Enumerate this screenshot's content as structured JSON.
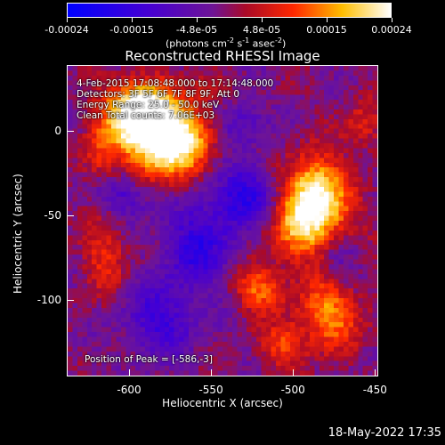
{
  "colorbar": {
    "tick_labels": [
      "-0.00024",
      "-0.00015",
      "-4.8e-05",
      "4.8e-05",
      "0.00015",
      "0.00024"
    ],
    "units_label": "(photons cm",
    "units_sup1": "-2",
    "units_mid": " s",
    "units_sup2": "-1",
    "units_mid2": " asec",
    "units_sup3": "-2",
    "units_end": ")",
    "range": [
      -0.00024,
      0.00024
    ]
  },
  "plot": {
    "title": "Reconstructed RHESSI Image",
    "xlabel": "Heliocentric X (arcsec)",
    "ylabel": "Heliocentric Y (arcsec)",
    "x_ticks": [
      "-600",
      "-550",
      "-500",
      "-450"
    ],
    "y_ticks": [
      "0",
      "-50",
      "-100"
    ],
    "xlim": [
      -638,
      -448
    ],
    "ylim": [
      -145,
      39
    ]
  },
  "annotations": {
    "time_range": "4-Feb-2015 17:08:48.000 to 17:14:48.000",
    "detectors": "Detectors: 3F 5F 6F 7F 8F 9F, Att 0",
    "energy": "Energy Range: 25.0 - 50.0 keV",
    "clean": "Clean      Total counts: 7.06E+03",
    "peak": "Position of Peak = [-586,-3]"
  },
  "footer": {
    "timestamp": "18-May-2022 17:35"
  }
}
